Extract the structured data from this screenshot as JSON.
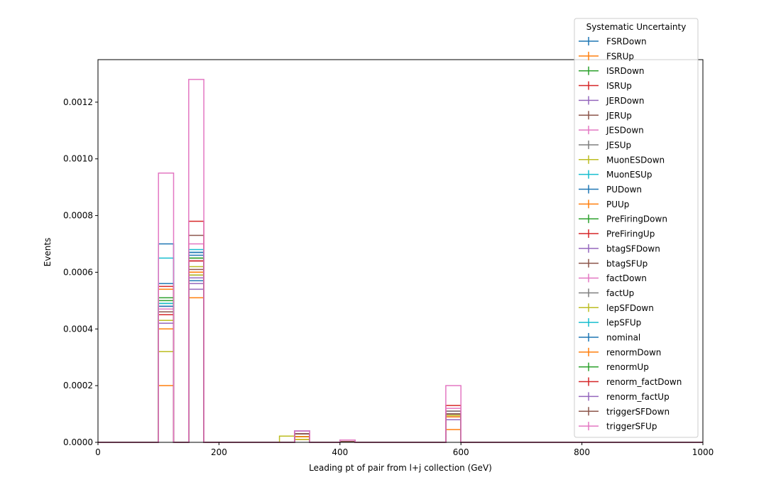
{
  "chart_data": {
    "type": "histogram-step",
    "xlabel": "Leading pt of pair from l+j collection (GeV)",
    "ylabel": "Events",
    "xlim": [
      0,
      1000
    ],
    "ylim": [
      0,
      0.00135
    ],
    "x_ticks": [
      0,
      200,
      400,
      600,
      800,
      1000
    ],
    "x_tick_labels": [
      "0",
      "200",
      "400",
      "600",
      "800",
      "1000"
    ],
    "y_ticks": [
      0,
      0.0002,
      0.0004,
      0.0006,
      0.0008,
      0.001,
      0.0012
    ],
    "y_tick_labels": [
      "0.0000",
      "0.0002",
      "0.0004",
      "0.0006",
      "0.0008",
      "0.0010",
      "0.0012"
    ],
    "grid": false,
    "legend": {
      "title": "Systematic Uncertainty",
      "placement": "upper-right, outside above axes"
    },
    "bin_width": 25,
    "bin_starts": [
      100,
      150,
      300,
      325,
      400,
      575
    ],
    "series": [
      {
        "name": "FSRDown",
        "color": "#1f77b4",
        "values": [
          0.00056,
          0.00057,
          0,
          3e-05,
          3e-06,
          0.0001
        ]
      },
      {
        "name": "FSRUp",
        "color": "#ff7f0e",
        "values": [
          0.00054,
          0.0006,
          0,
          1e-05,
          3e-06,
          4.5e-05
        ]
      },
      {
        "name": "ISRDown",
        "color": "#2ca02c",
        "values": [
          0.0005,
          0.00059,
          0,
          2e-05,
          3e-06,
          0.00011
        ]
      },
      {
        "name": "ISRUp",
        "color": "#d62728",
        "values": [
          0.00046,
          0.00064,
          0,
          2e-05,
          3e-06,
          0.00011
        ]
      },
      {
        "name": "JERDown",
        "color": "#9467bd",
        "values": [
          0.00047,
          0.00056,
          0,
          4e-05,
          3e-06,
          9e-05
        ]
      },
      {
        "name": "JERUp",
        "color": "#8c564b",
        "values": [
          0.00045,
          0.00073,
          0,
          3e-05,
          3e-06,
          0.0001
        ]
      },
      {
        "name": "JESDown",
        "color": "#e377c2",
        "values": [
          0.00047,
          0.0007,
          0,
          2e-05,
          3e-06,
          0.00011
        ]
      },
      {
        "name": "JESUp",
        "color": "#7f7f7f",
        "values": [
          0.00048,
          0.00067,
          0,
          3e-05,
          3e-06,
          0.00011
        ]
      },
      {
        "name": "MuonESDown",
        "color": "#bcbd22",
        "values": [
          0.00032,
          0.00062,
          2.2e-05,
          1e-05,
          3e-06,
          9.5e-05
        ]
      },
      {
        "name": "MuonESUp",
        "color": "#17becf",
        "values": [
          0.00065,
          0.00067,
          0,
          4e-05,
          3e-06,
          0.0001
        ]
      },
      {
        "name": "PUDown",
        "color": "#1f77b4",
        "values": [
          0.0007,
          0.00067,
          0,
          3e-05,
          3e-06,
          0.0001
        ]
      },
      {
        "name": "PUUp",
        "color": "#ff7f0e",
        "values": [
          0.0002,
          0.00051,
          0,
          2e-05,
          3e-06,
          9e-05
        ]
      },
      {
        "name": "PreFiringDown",
        "color": "#2ca02c",
        "values": [
          0.00049,
          0.00065,
          0,
          2e-05,
          3e-06,
          0.0001
        ]
      },
      {
        "name": "PreFiringUp",
        "color": "#d62728",
        "values": [
          0.00055,
          0.00078,
          0,
          3e-05,
          3e-06,
          0.00013
        ]
      },
      {
        "name": "btagSFDown",
        "color": "#9467bd",
        "values": [
          0.00048,
          0.00054,
          0,
          4e-05,
          8e-06,
          8e-05
        ]
      },
      {
        "name": "btagSFUp",
        "color": "#8c564b",
        "values": [
          0.00042,
          0.00064,
          0,
          3e-05,
          3e-06,
          0.0001
        ]
      },
      {
        "name": "factDown",
        "color": "#e377c2",
        "values": [
          0.00047,
          0.00064,
          0,
          3e-05,
          3e-06,
          0.00012
        ]
      },
      {
        "name": "factUp",
        "color": "#7f7f7f",
        "values": [
          0.00043,
          0.00059,
          0,
          2e-05,
          3e-06,
          0.0001
        ]
      },
      {
        "name": "lepSFDown",
        "color": "#bcbd22",
        "values": [
          0.00043,
          0.00059,
          0,
          2e-05,
          3e-06,
          0.0001
        ]
      },
      {
        "name": "lepSFUp",
        "color": "#17becf",
        "values": [
          0.00049,
          0.00068,
          0,
          3e-05,
          3e-06,
          0.0001
        ]
      },
      {
        "name": "nominal",
        "color": "#1f77b4",
        "values": [
          0.00048,
          0.00066,
          0,
          3e-05,
          3e-06,
          0.0001
        ]
      },
      {
        "name": "renormDown",
        "color": "#ff7f0e",
        "values": [
          0.0004,
          0.0006,
          0,
          2e-05,
          3e-06,
          0.0001
        ]
      },
      {
        "name": "renormUp",
        "color": "#2ca02c",
        "values": [
          0.00051,
          0.00065,
          0,
          3e-05,
          3e-06,
          0.0001
        ]
      },
      {
        "name": "renorm_factDown",
        "color": "#d62728",
        "values": [
          0.00045,
          0.00064,
          0,
          3e-05,
          3e-06,
          0.0001
        ]
      },
      {
        "name": "renorm_factUp",
        "color": "#9467bd",
        "values": [
          0.00042,
          0.00058,
          0,
          3e-05,
          3e-06,
          0.0001
        ]
      },
      {
        "name": "triggerSFDown",
        "color": "#8c564b",
        "values": [
          0.00046,
          0.00061,
          0,
          3e-05,
          3e-06,
          0.0001
        ]
      },
      {
        "name": "triggerSFUp",
        "color": "#e377c2",
        "values": [
          0.00095,
          0.00128,
          0,
          4e-05,
          8e-06,
          0.0002
        ]
      }
    ]
  }
}
